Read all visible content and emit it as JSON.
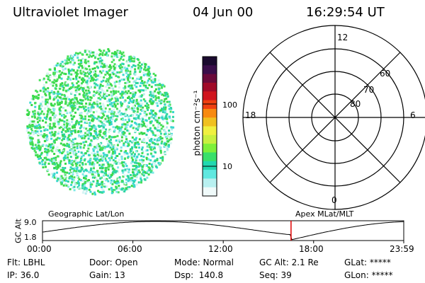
{
  "header": {
    "instrument": "Ultraviolet Imager",
    "date": "04 Jun 00",
    "time": "16:29:54 UT"
  },
  "colorbar": {
    "label": "photon cm⁻²s⁻¹",
    "ticks": [
      "100",
      "10"
    ],
    "colors": [
      "#1a0a2e",
      "#3a0e4a",
      "#6a0a3a",
      "#a00a28",
      "#d0141e",
      "#f04010",
      "#f88a10",
      "#f0c020",
      "#f0f040",
      "#c8f040",
      "#7ef03a",
      "#38e06a",
      "#20d8b0",
      "#60e8e0",
      "#b8f0f0",
      "#f0fafa"
    ]
  },
  "polar": {
    "rings": [
      "80",
      "70",
      "60"
    ],
    "mlt": {
      "top": "12",
      "left": "18",
      "right": "6",
      "bottom": "0"
    }
  },
  "altplot": {
    "title_left": "Geographic Lat/Lon",
    "title_right": "Apex MLat/MLT",
    "ylabel": "GC Alt",
    "ymax": "9.0",
    "ymin": "1.8",
    "time_ticks": [
      "00:00",
      "06:00",
      "12:00",
      "18:00",
      "23:59"
    ],
    "current_time_marker_hours": 16.5
  },
  "status": {
    "row1": [
      "Flt: LBHL",
      "Door: Open",
      "Mode: Normal",
      "GC Alt: 2.1 Re",
      "GLat: *****"
    ],
    "row2": [
      "IP: 36.0",
      "Gain: 13",
      "Dsp:  140.8",
      "Seq: 39",
      "GLon: *****"
    ]
  }
}
